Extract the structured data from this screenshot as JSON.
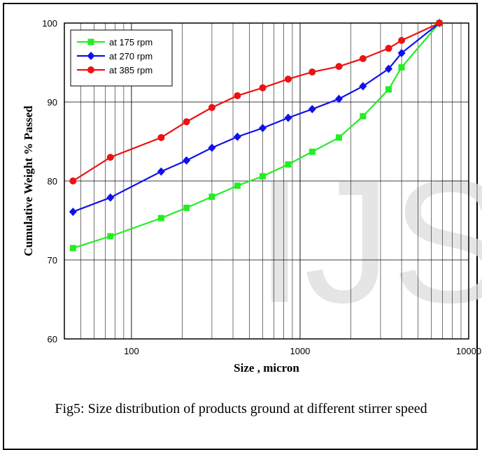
{
  "chart_data": {
    "type": "line",
    "xlabel": "Size , micron",
    "ylabel": "Cumulative Weight % Passed",
    "xscale": "log",
    "xlim": [
      40,
      10000
    ],
    "ylim": [
      60,
      100
    ],
    "yticks": [
      60,
      70,
      80,
      90,
      100
    ],
    "xtick_labels": [
      "100",
      "1000",
      "10000"
    ],
    "xticks": [
      100,
      1000,
      10000
    ],
    "grid": true,
    "legend_position": "top-left",
    "x": [
      45,
      75,
      150,
      212,
      300,
      425,
      600,
      850,
      1180,
      1700,
      2360,
      3350,
      4000,
      6700
    ],
    "series": [
      {
        "name": "at 175 rpm",
        "color": "#22ee22",
        "marker": "square",
        "values": [
          71.5,
          73.0,
          75.3,
          76.6,
          78.0,
          79.4,
          80.6,
          82.1,
          83.7,
          85.5,
          88.2,
          91.6,
          94.4,
          100
        ]
      },
      {
        "name": "at 270 rpm",
        "color": "#1010ee",
        "marker": "diamond",
        "values": [
          76.1,
          77.9,
          81.2,
          82.6,
          84.2,
          85.6,
          86.7,
          88.0,
          89.1,
          90.4,
          92.0,
          94.2,
          96.2,
          100
        ]
      },
      {
        "name": "at 385 rpm",
        "color": "#ee1111",
        "marker": "circle",
        "values": [
          80.0,
          83.0,
          85.5,
          87.5,
          89.3,
          90.8,
          91.8,
          92.9,
          93.8,
          94.5,
          95.5,
          96.8,
          97.8,
          100
        ]
      }
    ]
  },
  "watermark": "IJS",
  "caption": "Fig5: Size distribution of products ground at different stirrer speed"
}
